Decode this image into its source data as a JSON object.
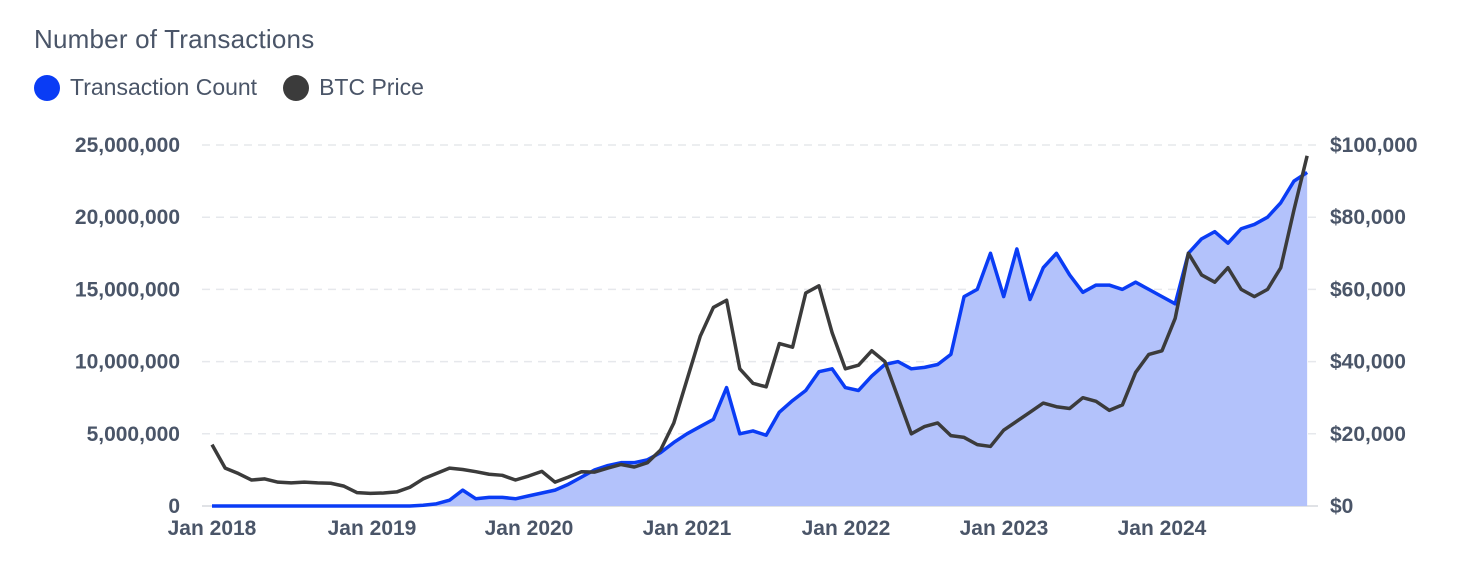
{
  "chart_data": {
    "type": "line",
    "title": "Number of Transactions",
    "legend": [
      "Transaction Count",
      "BTC Price"
    ],
    "legend_position": "top-left",
    "grid": "horizontal dashed",
    "x": [
      "2018-01",
      "2018-02",
      "2018-03",
      "2018-04",
      "2018-05",
      "2018-06",
      "2018-07",
      "2018-08",
      "2018-09",
      "2018-10",
      "2018-11",
      "2018-12",
      "2019-01",
      "2019-02",
      "2019-03",
      "2019-04",
      "2019-05",
      "2019-06",
      "2019-07",
      "2019-08",
      "2019-09",
      "2019-10",
      "2019-11",
      "2019-12",
      "2020-01",
      "2020-02",
      "2020-03",
      "2020-04",
      "2020-05",
      "2020-06",
      "2020-07",
      "2020-08",
      "2020-09",
      "2020-10",
      "2020-11",
      "2020-12",
      "2021-01",
      "2021-02",
      "2021-03",
      "2021-04",
      "2021-05",
      "2021-06",
      "2021-07",
      "2021-08",
      "2021-09",
      "2021-10",
      "2021-11",
      "2021-12",
      "2022-01",
      "2022-02",
      "2022-03",
      "2022-04",
      "2022-05",
      "2022-06",
      "2022-07",
      "2022-08",
      "2022-09",
      "2022-10",
      "2022-11",
      "2022-12",
      "2023-01",
      "2023-02",
      "2023-03",
      "2023-04",
      "2023-05",
      "2023-06",
      "2023-07",
      "2023-08",
      "2023-09",
      "2023-10",
      "2023-11",
      "2023-12",
      "2024-01",
      "2024-02",
      "2024-03",
      "2024-04",
      "2024-05",
      "2024-06",
      "2024-07",
      "2024-08",
      "2024-09",
      "2024-10",
      "2024-11",
      "2024-12"
    ],
    "x_ticks": [
      "Jan 2018",
      "Jan 2019",
      "Jan 2020",
      "Jan 2021",
      "Jan 2022",
      "Jan 2023",
      "Jan 2024"
    ],
    "y_ticks_left": [
      "0",
      "5,000,000",
      "10,000,000",
      "15,000,000",
      "20,000,000",
      "25,000,000"
    ],
    "y_ticks_right": [
      "$0",
      "$20,000",
      "$40,000",
      "$60,000",
      "$80,000",
      "$100,000"
    ],
    "ylim_left": [
      0,
      25000000
    ],
    "ylim_right": [
      0,
      100000
    ],
    "series": [
      {
        "name": "Transaction Count",
        "axis": "left",
        "fill": true,
        "values": [
          0,
          0,
          0,
          0,
          0,
          0,
          0,
          0,
          0,
          0,
          0,
          0,
          0,
          0,
          0,
          0,
          50000,
          150000,
          400000,
          1100000,
          500000,
          600000,
          600000,
          500000,
          700000,
          900000,
          1100000,
          1500000,
          2000000,
          2500000,
          2800000,
          3000000,
          3000000,
          3200000,
          3700000,
          4400000,
          5000000,
          5500000,
          6000000,
          8200000,
          5000000,
          5200000,
          4900000,
          6500000,
          7300000,
          8000000,
          9300000,
          9500000,
          8200000,
          8000000,
          9000000,
          9800000,
          10000000,
          9500000,
          9600000,
          9800000,
          10500000,
          14500000,
          15000000,
          17500000,
          14500000,
          17800000,
          14300000,
          16500000,
          17500000,
          16000000,
          14800000,
          15300000,
          15300000,
          15000000,
          15500000,
          15000000,
          14500000,
          14000000,
          17500000,
          18500000,
          19000000,
          18200000,
          19200000,
          19500000,
          20000000,
          21000000,
          22500000,
          23100000
        ]
      },
      {
        "name": "BTC Price",
        "axis": "right",
        "fill": false,
        "values": [
          17000,
          10500,
          9000,
          7200,
          7500,
          6600,
          6400,
          6600,
          6400,
          6300,
          5500,
          3700,
          3500,
          3600,
          3900,
          5200,
          7500,
          9000,
          10500,
          10100,
          9500,
          8800,
          8500,
          7200,
          8300,
          9600,
          6600,
          8000,
          9500,
          9400,
          10500,
          11500,
          10800,
          12000,
          15500,
          23000,
          35000,
          47000,
          55000,
          57000,
          38000,
          34000,
          33000,
          45000,
          44000,
          59000,
          61000,
          48000,
          38000,
          39000,
          43000,
          40000,
          30000,
          20000,
          22000,
          23000,
          19500,
          19000,
          17000,
          16500,
          21000,
          23500,
          26000,
          28500,
          27500,
          27000,
          30000,
          29000,
          26500,
          28000,
          37000,
          42000,
          43000,
          52000,
          70000,
          64000,
          62000,
          66000,
          60000,
          58000,
          60000,
          66000,
          82000,
          97000
        ]
      }
    ]
  }
}
